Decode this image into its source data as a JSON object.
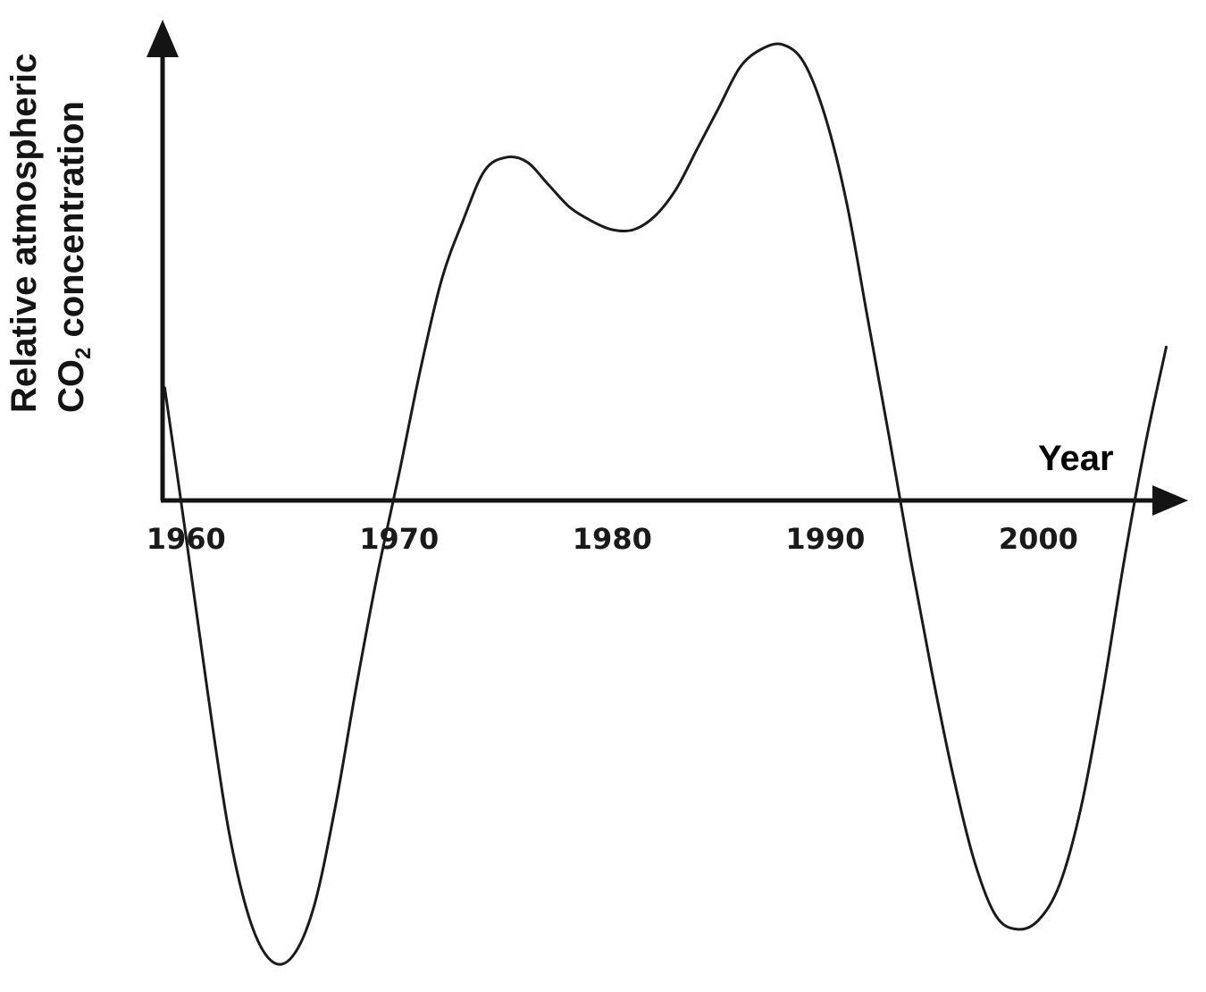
{
  "chart_data": {
    "type": "line",
    "ylabel_line1": "Relative atmospheric",
    "ylabel_line2_prefix": "CO",
    "ylabel_line2_subscript": "2",
    "ylabel_line2_suffix": " concentration",
    "xlabel": "Year",
    "x_ticks": [
      "1960",
      "1970",
      "1980",
      "1990",
      "2000"
    ],
    "x_tick_values": [
      1960,
      1970,
      1980,
      1990,
      2000
    ],
    "xlim": [
      1958.9,
      2006.9
    ],
    "ylim": [
      -1.0,
      1.0
    ],
    "y_baseline": 0,
    "legend": "none",
    "grid": false,
    "colors": {
      "axis": "#141414",
      "line": "#1a1a1a",
      "text": "#141414"
    },
    "series": [
      {
        "x": [
          1959.0,
          1960.0,
          1961.0,
          1962.0,
          1963.0,
          1964.0,
          1965.0,
          1966.0,
          1967.0,
          1968.0,
          1969.0,
          1970.0,
          1971.0,
          1972.0,
          1973.0,
          1974.0,
          1975.0,
          1976.0,
          1977.0,
          1978.0,
          1979.0,
          1980.0,
          1981.0,
          1982.0,
          1983.0,
          1984.0,
          1985.0,
          1986.0,
          1987.0,
          1988.0,
          1989.0,
          1990.0,
          1991.0,
          1992.0,
          1993.0,
          1994.0,
          1995.0,
          1996.0,
          1997.0,
          1998.0,
          1999.0,
          2000.0,
          2001.0,
          2002.0,
          2003.0,
          2004.0,
          2005.0,
          2006.0
        ],
        "y": [
          0.25,
          -0.08,
          -0.42,
          -0.73,
          -0.93,
          -1.02,
          -1.01,
          -0.9,
          -0.68,
          -0.41,
          -0.16,
          0.06,
          0.29,
          0.49,
          0.62,
          0.73,
          0.76,
          0.75,
          0.7,
          0.65,
          0.62,
          0.6,
          0.6,
          0.63,
          0.69,
          0.78,
          0.87,
          0.96,
          1.0,
          1.01,
          0.97,
          0.85,
          0.66,
          0.4,
          0.14,
          -0.13,
          -0.38,
          -0.61,
          -0.8,
          -0.92,
          -0.95,
          -0.93,
          -0.85,
          -0.68,
          -0.43,
          -0.14,
          0.12,
          0.34
        ]
      }
    ]
  }
}
